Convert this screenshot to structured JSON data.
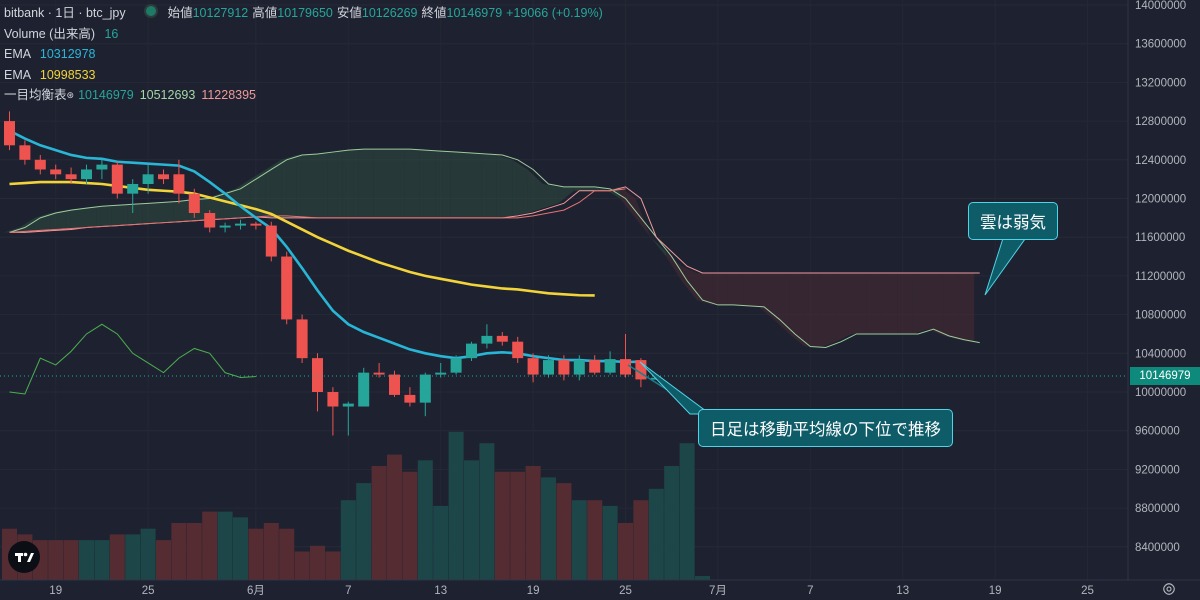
{
  "header": {
    "symbol": "bitbank · 1日 · btc_jpy",
    "ohlc": [
      {
        "label": "始値",
        "value": "10127912"
      },
      {
        "label": "高値",
        "value": "10179650"
      },
      {
        "label": "安値",
        "value": "10126269"
      },
      {
        "label": "終値",
        "value": "10146979"
      },
      {
        "label": "",
        "value": "+19066 (+0.19%)"
      }
    ]
  },
  "indicators": [
    {
      "name": "Volume (出来高)",
      "value": "16",
      "color": "#26a69a"
    },
    {
      "name": "EMA",
      "value": "10312978",
      "color": "#29b6d6"
    },
    {
      "name": "EMA",
      "value": "10998533",
      "color": "#f2d43a"
    },
    {
      "name": "一目均衡表",
      "values": [
        "10146979",
        "10512693",
        "11228395"
      ],
      "colors": [
        "#26a69a",
        "#a5d6a7",
        "#ef9a9a"
      ]
    }
  ],
  "price_tag": "10146979",
  "callouts": {
    "cloud": "雲は弱気",
    "candle": "日足は移動平均線の下位で推移"
  },
  "colors": {
    "up": "#26a69a",
    "down": "#ef5350",
    "ema_short": "#29b6d6",
    "ema_long": "#f2d43a",
    "kumo_bull": "#2e4a40",
    "kumo_bear": "#4a2a33",
    "chikou": "#4caf50",
    "background": "#1e2230"
  },
  "icons": [
    "tradingview-logo-icon",
    "settings-icon",
    "legend-dot-icon"
  ],
  "chart_data": {
    "type": "candlestick",
    "y_axis": {
      "ticks": [
        "14000000",
        "13600000",
        "13200000",
        "12800000",
        "12400000",
        "12000000",
        "11600000",
        "11200000",
        "10800000",
        "10400000",
        "10000000",
        "9600000",
        "9200000",
        "8800000",
        "8400000"
      ],
      "ylim": [
        8000000,
        14000000
      ]
    },
    "x_axis": {
      "ticks": [
        {
          "label": "19",
          "i": 3
        },
        {
          "label": "25",
          "i": 9
        },
        {
          "label": "6月",
          "i": 16
        },
        {
          "label": "7",
          "i": 22
        },
        {
          "label": "13",
          "i": 28
        },
        {
          "label": "19",
          "i": 34
        },
        {
          "label": "25",
          "i": 40
        },
        {
          "label": "7月",
          "i": 46
        },
        {
          "label": "7",
          "i": 52
        },
        {
          "label": "13",
          "i": 58
        },
        {
          "label": "19",
          "i": 64
        },
        {
          "label": "25",
          "i": 70
        }
      ],
      "bars_total": 75
    },
    "candles": [
      {
        "o": 12800000,
        "h": 12900000,
        "l": 12500000,
        "c": 12550000
      },
      {
        "o": 12550000,
        "h": 12600000,
        "l": 12350000,
        "c": 12400000
      },
      {
        "o": 12400000,
        "h": 12450000,
        "l": 12250000,
        "c": 12300000
      },
      {
        "o": 12300000,
        "h": 12350000,
        "l": 12200000,
        "c": 12250000
      },
      {
        "o": 12250000,
        "h": 12320000,
        "l": 12150000,
        "c": 12200000
      },
      {
        "o": 12200000,
        "h": 12350000,
        "l": 12150000,
        "c": 12300000
      },
      {
        "o": 12300000,
        "h": 12400000,
        "l": 12200000,
        "c": 12350000
      },
      {
        "o": 12350000,
        "h": 12380000,
        "l": 12000000,
        "c": 12050000
      },
      {
        "o": 12050000,
        "h": 12200000,
        "l": 11850000,
        "c": 12150000
      },
      {
        "o": 12150000,
        "h": 12350000,
        "l": 12050000,
        "c": 12250000
      },
      {
        "o": 12250000,
        "h": 12300000,
        "l": 12150000,
        "c": 12200000
      },
      {
        "o": 12250000,
        "h": 12400000,
        "l": 11950000,
        "c": 12050000
      },
      {
        "o": 12050000,
        "h": 12100000,
        "l": 11800000,
        "c": 11850000
      },
      {
        "o": 11850000,
        "h": 11880000,
        "l": 11650000,
        "c": 11700000
      },
      {
        "o": 11700000,
        "h": 11750000,
        "l": 11650000,
        "c": 11720000
      },
      {
        "o": 11720000,
        "h": 11780000,
        "l": 11680000,
        "c": 11740000
      },
      {
        "o": 11740000,
        "h": 11760000,
        "l": 11680000,
        "c": 11720000
      },
      {
        "o": 11720000,
        "h": 11760000,
        "l": 11350000,
        "c": 11400000
      },
      {
        "o": 11400000,
        "h": 11450000,
        "l": 10700000,
        "c": 10750000
      },
      {
        "o": 10750000,
        "h": 10800000,
        "l": 10300000,
        "c": 10350000
      },
      {
        "o": 10350000,
        "h": 10400000,
        "l": 9800000,
        "c": 10000000
      },
      {
        "o": 10000000,
        "h": 10050000,
        "l": 9550000,
        "c": 9850000
      },
      {
        "o": 9850000,
        "h": 9900000,
        "l": 9550000,
        "c": 9880000
      },
      {
        "o": 9850000,
        "h": 10250000,
        "l": 9850000,
        "c": 10200000
      },
      {
        "o": 10200000,
        "h": 10300000,
        "l": 10150000,
        "c": 10180000
      },
      {
        "o": 10180000,
        "h": 10220000,
        "l": 9950000,
        "c": 9970000
      },
      {
        "o": 9970000,
        "h": 10050000,
        "l": 9850000,
        "c": 9890000
      },
      {
        "o": 9890000,
        "h": 10200000,
        "l": 9750000,
        "c": 10180000
      },
      {
        "o": 10180000,
        "h": 10300000,
        "l": 10150000,
        "c": 10200000
      },
      {
        "o": 10200000,
        "h": 10380000,
        "l": 10180000,
        "c": 10350000
      },
      {
        "o": 10350000,
        "h": 10520000,
        "l": 10320000,
        "c": 10500000
      },
      {
        "o": 10500000,
        "h": 10700000,
        "l": 10450000,
        "c": 10580000
      },
      {
        "o": 10580000,
        "h": 10620000,
        "l": 10480000,
        "c": 10520000
      },
      {
        "o": 10520000,
        "h": 10570000,
        "l": 10300000,
        "c": 10350000
      },
      {
        "o": 10350000,
        "h": 10400000,
        "l": 10100000,
        "c": 10180000
      },
      {
        "o": 10180000,
        "h": 10380000,
        "l": 10150000,
        "c": 10330000
      },
      {
        "o": 10330000,
        "h": 10380000,
        "l": 10120000,
        "c": 10180000
      },
      {
        "o": 10180000,
        "h": 10380000,
        "l": 10120000,
        "c": 10330000
      },
      {
        "o": 10330000,
        "h": 10380000,
        "l": 10180000,
        "c": 10200000
      },
      {
        "o": 10200000,
        "h": 10420000,
        "l": 10180000,
        "c": 10340000
      },
      {
        "o": 10340000,
        "h": 10600000,
        "l": 10150000,
        "c": 10180000
      },
      {
        "o": 10330000,
        "h": 10350000,
        "l": 10050000,
        "c": 10130000
      },
      {
        "o": 10127912,
        "h": 10179650,
        "l": 10126269,
        "c": 10146979
      }
    ],
    "ema_short": [
      12700000,
      12620000,
      12550000,
      12500000,
      12450000,
      12420000,
      12410000,
      12380000,
      12370000,
      12360000,
      12350000,
      12340000,
      12280000,
      12170000,
      12050000,
      11920000,
      11800000,
      11690000,
      11500000,
      11280000,
      11050000,
      10840000,
      10700000,
      10620000,
      10560000,
      10500000,
      10440000,
      10400000,
      10370000,
      10350000,
      10370000,
      10400000,
      10410000,
      10400000,
      10370000,
      10350000,
      10330000,
      10330000,
      10320000,
      10320000,
      10310000,
      10313000
    ],
    "ema_long": [
      12150000,
      12160000,
      12170000,
      12170000,
      12170000,
      12160000,
      12150000,
      12130000,
      12110000,
      12090000,
      12080000,
      12070000,
      12050000,
      12010000,
      11970000,
      11930000,
      11890000,
      11840000,
      11760000,
      11680000,
      11600000,
      11530000,
      11460000,
      11400000,
      11340000,
      11290000,
      11240000,
      11200000,
      11170000,
      11140000,
      11110000,
      11090000,
      11070000,
      11060000,
      11040000,
      11020000,
      11010000,
      11000000,
      10998533
    ],
    "kijun": [
      11650000,
      11660000,
      11670000,
      11680000,
      11690000,
      11700000,
      11710000,
      11720000,
      11730000,
      11740000,
      11750000,
      11760000,
      11770000,
      11780000,
      11790000,
      11800000,
      11810000,
      11820000,
      11820000,
      11810000,
      11800000,
      11800000,
      11800000,
      11800000,
      11800000,
      11800000,
      11800000,
      11800000,
      11800000,
      11800000,
      11800000,
      11800000,
      11800000,
      11800000,
      11820000,
      11850000,
      11880000,
      11960000,
      12080000,
      12080000,
      12100000
    ],
    "senkou_a": [
      11650000,
      11700000,
      11800000,
      11850000,
      11880000,
      11900000,
      11920000,
      11930000,
      11940000,
      11950000,
      11960000,
      11970000,
      11990000,
      12000000,
      12050000,
      12100000,
      12200000,
      12300000,
      12400000,
      12450000,
      12460000,
      12480000,
      12500000,
      12510000,
      12510000,
      12510000,
      12510000,
      12500000,
      12490000,
      12480000,
      12470000,
      12460000,
      12450000,
      12400000,
      12300000,
      12150000,
      12120000,
      12120000,
      12120000,
      12100000,
      12000000,
      11800000,
      11600000,
      11400000,
      11150000,
      10950000,
      10900000,
      10900000,
      10890000,
      10880000,
      10750000,
      10600000,
      10470000,
      10460000,
      10520000,
      10600000,
      10600000,
      10600000,
      10600000,
      10600000,
      10650000,
      10580000,
      10540000,
      10510000
    ],
    "senkou_b": [
      11650000,
      11650000,
      11660000,
      11670000,
      11680000,
      11700000,
      11710000,
      11720000,
      11730000,
      11740000,
      11750000,
      11760000,
      11770000,
      11780000,
      11790000,
      11800000,
      11810000,
      11800000,
      11800000,
      11800000,
      11800000,
      11800000,
      11800000,
      11800000,
      11800000,
      11800000,
      11800000,
      11800000,
      11800000,
      11800000,
      11800000,
      11800000,
      11800000,
      11820000,
      11850000,
      11900000,
      11950000,
      12080000,
      12080000,
      12080000,
      12120000,
      12000000,
      11600000,
      11450000,
      11300000,
      11230000,
      11230000,
      11230000,
      11230000,
      11230000,
      11230000,
      11230000,
      11230000,
      11230000,
      11230000,
      11230000,
      11230000,
      11230000,
      11230000,
      11230000,
      11230000,
      11230000,
      11230000,
      11230000
    ],
    "chikou": [
      10000000,
      9980000,
      10350000,
      10280000,
      10420000,
      10600000,
      10700000,
      10600000,
      10400000,
      10300000,
      10200000,
      10350000,
      10450000,
      10400000,
      10200000,
      10150000,
      10160000
    ],
    "volume": [
      9,
      8,
      7,
      7,
      7,
      7,
      7,
      8,
      8,
      9,
      7,
      10,
      10,
      12,
      12,
      11,
      9,
      10,
      9,
      5,
      6,
      5,
      14,
      17,
      20,
      22,
      19,
      21,
      13,
      26,
      21,
      24,
      19,
      19,
      20,
      18,
      17,
      14,
      14,
      13,
      10,
      14,
      16,
      20,
      24,
      0.7
    ]
  }
}
